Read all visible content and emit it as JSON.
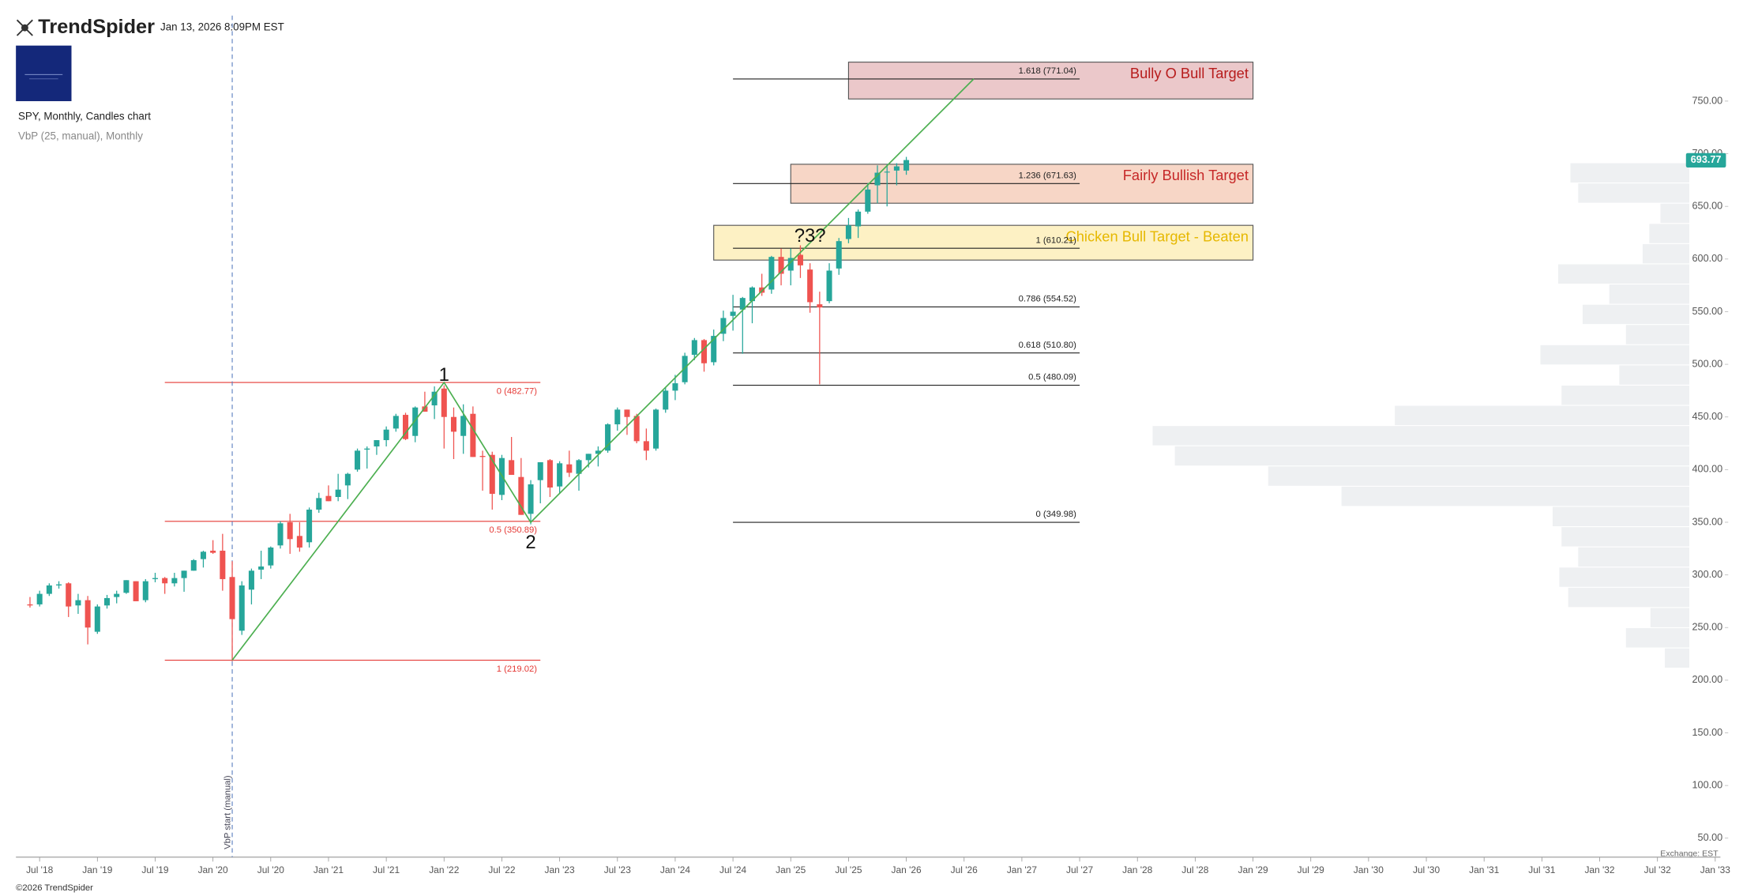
{
  "header": {
    "brand": "TrendSpider",
    "timestamp": "Jan 13, 2026 8:09PM EST",
    "footer": "©2026 TrendSpider"
  },
  "chart_data": {
    "type": "candlestick",
    "title": "SPY, Monthly, Candles chart",
    "subtitle": "VbP (25, manual), Monthly",
    "exchange": "Exchange: EST",
    "up_color": "#26a69a",
    "down_color": "#ef5350",
    "last_price": 693.77,
    "xlim": [
      "2018-05",
      "2033-02"
    ],
    "ylim": [
      32,
      846
    ],
    "yticks": [
      {
        "value": 50,
        "label": "50.00"
      },
      {
        "value": 100,
        "label": "100.00"
      },
      {
        "value": 150,
        "label": "150.00"
      },
      {
        "value": 200,
        "label": "200.00"
      },
      {
        "value": 250,
        "label": "250.00"
      },
      {
        "value": 300,
        "label": "300.00"
      },
      {
        "value": 350,
        "label": "350.00"
      },
      {
        "value": 400,
        "label": "400.00"
      },
      {
        "value": 450,
        "label": "450.00"
      },
      {
        "value": 500,
        "label": "500.00"
      },
      {
        "value": 550,
        "label": "550.00"
      },
      {
        "value": 600,
        "label": "600.00"
      },
      {
        "value": 650,
        "label": "650.00"
      },
      {
        "value": 700,
        "label": "700.00"
      },
      {
        "value": 750,
        "label": "750.00"
      }
    ],
    "xticks": [
      {
        "value": "2018-07",
        "label": "Jul '18"
      },
      {
        "value": "2019-01",
        "label": "Jan '19"
      },
      {
        "value": "2019-07",
        "label": "Jul '19"
      },
      {
        "value": "2020-01",
        "label": "Jan '20"
      },
      {
        "value": "2020-07",
        "label": "Jul '20"
      },
      {
        "value": "2021-01",
        "label": "Jan '21"
      },
      {
        "value": "2021-07",
        "label": "Jul '21"
      },
      {
        "value": "2022-01",
        "label": "Jan '22"
      },
      {
        "value": "2022-07",
        "label": "Jul '22"
      },
      {
        "value": "2023-01",
        "label": "Jan '23"
      },
      {
        "value": "2023-07",
        "label": "Jul '23"
      },
      {
        "value": "2024-01",
        "label": "Jan '24"
      },
      {
        "value": "2024-07",
        "label": "Jul '24"
      },
      {
        "value": "2025-01",
        "label": "Jan '25"
      },
      {
        "value": "2025-07",
        "label": "Jul '25"
      },
      {
        "value": "2026-01",
        "label": "Jan '26"
      },
      {
        "value": "2026-07",
        "label": "Jul '26"
      },
      {
        "value": "2027-01",
        "label": "Jan '27"
      },
      {
        "value": "2027-07",
        "label": "Jul '27"
      },
      {
        "value": "2028-01",
        "label": "Jan '28"
      },
      {
        "value": "2028-07",
        "label": "Jul '28"
      },
      {
        "value": "2029-01",
        "label": "Jan '29"
      },
      {
        "value": "2029-07",
        "label": "Jul '29"
      },
      {
        "value": "2030-01",
        "label": "Jan '30"
      },
      {
        "value": "2030-07",
        "label": "Jul '30"
      },
      {
        "value": "2031-01",
        "label": "Jan '31"
      },
      {
        "value": "2031-07",
        "label": "Jul '31"
      },
      {
        "value": "2032-01",
        "label": "Jan '32"
      },
      {
        "value": "2032-07",
        "label": "Jul '32"
      },
      {
        "value": "2033-01",
        "label": "Jan '33"
      }
    ],
    "candles": [
      {
        "x": "2018-06",
        "open": 272,
        "high": 279,
        "low": 269,
        "close": 271
      },
      {
        "x": "2018-07",
        "open": 272,
        "high": 285,
        "low": 270,
        "close": 282
      },
      {
        "x": "2018-08",
        "open": 282,
        "high": 292,
        "low": 280,
        "close": 290
      },
      {
        "x": "2018-09",
        "open": 290,
        "high": 294,
        "low": 287,
        "close": 291
      },
      {
        "x": "2018-10",
        "open": 292,
        "high": 293,
        "low": 260,
        "close": 270
      },
      {
        "x": "2018-11",
        "open": 271,
        "high": 282,
        "low": 263,
        "close": 276
      },
      {
        "x": "2018-12",
        "open": 276,
        "high": 280,
        "low": 234,
        "close": 250
      },
      {
        "x": "2019-01",
        "open": 246,
        "high": 272,
        "low": 244,
        "close": 270
      },
      {
        "x": "2019-02",
        "open": 271,
        "high": 281,
        "low": 268,
        "close": 278
      },
      {
        "x": "2019-03",
        "open": 279,
        "high": 285,
        "low": 273,
        "close": 282
      },
      {
        "x": "2019-04",
        "open": 283,
        "high": 295,
        "low": 282,
        "close": 295
      },
      {
        "x": "2019-05",
        "open": 294,
        "high": 294,
        "low": 275,
        "close": 275
      },
      {
        "x": "2019-06",
        "open": 276,
        "high": 296,
        "low": 274,
        "close": 294
      },
      {
        "x": "2019-07",
        "open": 296,
        "high": 302,
        "low": 293,
        "close": 297
      },
      {
        "x": "2019-08",
        "open": 297,
        "high": 298,
        "low": 282,
        "close": 292
      },
      {
        "x": "2019-09",
        "open": 292,
        "high": 302,
        "low": 289,
        "close": 297
      },
      {
        "x": "2019-10",
        "open": 297,
        "high": 304,
        "low": 284,
        "close": 304
      },
      {
        "x": "2019-11",
        "open": 304,
        "high": 315,
        "low": 304,
        "close": 314
      },
      {
        "x": "2019-12",
        "open": 315,
        "high": 323,
        "low": 307,
        "close": 322
      },
      {
        "x": "2020-01",
        "open": 323,
        "high": 333,
        "low": 320,
        "close": 321
      },
      {
        "x": "2020-02",
        "open": 323,
        "high": 339,
        "low": 285,
        "close": 296
      },
      {
        "x": "2020-03",
        "open": 298,
        "high": 313,
        "low": 218,
        "close": 258
      },
      {
        "x": "2020-04",
        "open": 247,
        "high": 294,
        "low": 243,
        "close": 290
      },
      {
        "x": "2020-05",
        "open": 286,
        "high": 306,
        "low": 272,
        "close": 304
      },
      {
        "x": "2020-06",
        "open": 305,
        "high": 323,
        "low": 296,
        "close": 308
      },
      {
        "x": "2020-07",
        "open": 309,
        "high": 327,
        "low": 306,
        "close": 326
      },
      {
        "x": "2020-08",
        "open": 328,
        "high": 351,
        "low": 325,
        "close": 349
      },
      {
        "x": "2020-09",
        "open": 350,
        "high": 358,
        "low": 320,
        "close": 334
      },
      {
        "x": "2020-10",
        "open": 337,
        "high": 350,
        "low": 322,
        "close": 326
      },
      {
        "x": "2020-11",
        "open": 331,
        "high": 364,
        "low": 326,
        "close": 362
      },
      {
        "x": "2020-12",
        "open": 362,
        "high": 378,
        "low": 359,
        "close": 373
      },
      {
        "x": "2021-01",
        "open": 375,
        "high": 385,
        "low": 370,
        "close": 370
      },
      {
        "x": "2021-02",
        "open": 374,
        "high": 396,
        "low": 370,
        "close": 381
      },
      {
        "x": "2021-03",
        "open": 385,
        "high": 397,
        "low": 372,
        "close": 396
      },
      {
        "x": "2021-04",
        "open": 400,
        "high": 420,
        "low": 398,
        "close": 418
      },
      {
        "x": "2021-05",
        "open": 419,
        "high": 422,
        "low": 401,
        "close": 420
      },
      {
        "x": "2021-06",
        "open": 422,
        "high": 428,
        "low": 414,
        "close": 428
      },
      {
        "x": "2021-07",
        "open": 428,
        "high": 441,
        "low": 422,
        "close": 438
      },
      {
        "x": "2021-08",
        "open": 439,
        "high": 453,
        "low": 436,
        "close": 451
      },
      {
        "x": "2021-09",
        "open": 452,
        "high": 454,
        "low": 428,
        "close": 429
      },
      {
        "x": "2021-10",
        "open": 432,
        "high": 460,
        "low": 426,
        "close": 459
      },
      {
        "x": "2021-11",
        "open": 460,
        "high": 474,
        "low": 455,
        "close": 455
      },
      {
        "x": "2021-12",
        "open": 461,
        "high": 479,
        "low": 448,
        "close": 474
      },
      {
        "x": "2022-01",
        "open": 477,
        "high": 480,
        "low": 420,
        "close": 450
      },
      {
        "x": "2022-02",
        "open": 450,
        "high": 459,
        "low": 410,
        "close": 436
      },
      {
        "x": "2022-03",
        "open": 432,
        "high": 462,
        "low": 415,
        "close": 451
      },
      {
        "x": "2022-04",
        "open": 453,
        "high": 460,
        "low": 412,
        "close": 412
      },
      {
        "x": "2022-05",
        "open": 413,
        "high": 418,
        "low": 380,
        "close": 412
      },
      {
        "x": "2022-06",
        "open": 414,
        "high": 417,
        "low": 362,
        "close": 377
      },
      {
        "x": "2022-07",
        "open": 376,
        "high": 414,
        "low": 371,
        "close": 411
      },
      {
        "x": "2022-08",
        "open": 409,
        "high": 431,
        "low": 395,
        "close": 395
      },
      {
        "x": "2022-09",
        "open": 393,
        "high": 411,
        "low": 357,
        "close": 357
      },
      {
        "x": "2022-10",
        "open": 358,
        "high": 390,
        "low": 348,
        "close": 386
      },
      {
        "x": "2022-11",
        "open": 390,
        "high": 407,
        "low": 368,
        "close": 407
      },
      {
        "x": "2022-12",
        "open": 409,
        "high": 410,
        "low": 374,
        "close": 383
      },
      {
        "x": "2023-01",
        "open": 384,
        "high": 408,
        "low": 377,
        "close": 406
      },
      {
        "x": "2023-02",
        "open": 405,
        "high": 418,
        "low": 393,
        "close": 397
      },
      {
        "x": "2023-03",
        "open": 396,
        "high": 410,
        "low": 380,
        "close": 409
      },
      {
        "x": "2023-04",
        "open": 409,
        "high": 415,
        "low": 402,
        "close": 415
      },
      {
        "x": "2023-05",
        "open": 415,
        "high": 422,
        "low": 403,
        "close": 418
      },
      {
        "x": "2023-06",
        "open": 418,
        "high": 444,
        "low": 416,
        "close": 443
      },
      {
        "x": "2023-07",
        "open": 443,
        "high": 459,
        "low": 437,
        "close": 457
      },
      {
        "x": "2023-08",
        "open": 457,
        "high": 457,
        "low": 433,
        "close": 450
      },
      {
        "x": "2023-09",
        "open": 451,
        "high": 453,
        "low": 425,
        "close": 427
      },
      {
        "x": "2023-10",
        "open": 427,
        "high": 439,
        "low": 409,
        "close": 418
      },
      {
        "x": "2023-11",
        "open": 420,
        "high": 458,
        "low": 418,
        "close": 457
      },
      {
        "x": "2023-12",
        "open": 457,
        "high": 478,
        "low": 454,
        "close": 475
      },
      {
        "x": "2024-01",
        "open": 475,
        "high": 490,
        "low": 466,
        "close": 482
      },
      {
        "x": "2024-02",
        "open": 483,
        "high": 511,
        "low": 481,
        "close": 508
      },
      {
        "x": "2024-03",
        "open": 509,
        "high": 525,
        "low": 504,
        "close": 523
      },
      {
        "x": "2024-04",
        "open": 523,
        "high": 524,
        "low": 493,
        "close": 501
      },
      {
        "x": "2024-05",
        "open": 502,
        "high": 533,
        "low": 499,
        "close": 527
      },
      {
        "x": "2024-06",
        "open": 529,
        "high": 551,
        "low": 522,
        "close": 544
      },
      {
        "x": "2024-07",
        "open": 546,
        "high": 566,
        "low": 532,
        "close": 550
      },
      {
        "x": "2024-08",
        "open": 552,
        "high": 564,
        "low": 510,
        "close": 563
      },
      {
        "x": "2024-09",
        "open": 560,
        "high": 574,
        "low": 539,
        "close": 573
      },
      {
        "x": "2024-10",
        "open": 573,
        "high": 586,
        "low": 565,
        "close": 568
      },
      {
        "x": "2024-11",
        "open": 571,
        "high": 603,
        "low": 567,
        "close": 602
      },
      {
        "x": "2024-12",
        "open": 602,
        "high": 610,
        "low": 575,
        "close": 586
      },
      {
        "x": "2025-01",
        "open": 589,
        "high": 610,
        "low": 575,
        "close": 601
      },
      {
        "x": "2025-02",
        "open": 604,
        "high": 613,
        "low": 582,
        "close": 594
      },
      {
        "x": "2025-03",
        "open": 590,
        "high": 596,
        "low": 549,
        "close": 559
      },
      {
        "x": "2025-04",
        "open": 557,
        "high": 569,
        "low": 481,
        "close": 554
      },
      {
        "x": "2025-05",
        "open": 560,
        "high": 596,
        "low": 558,
        "close": 589
      },
      {
        "x": "2025-06",
        "open": 591,
        "high": 620,
        "low": 585,
        "close": 617
      },
      {
        "x": "2025-07",
        "open": 619,
        "high": 639,
        "low": 615,
        "close": 632
      },
      {
        "x": "2025-08",
        "open": 631,
        "high": 647,
        "low": 620,
        "close": 645
      },
      {
        "x": "2025-09",
        "open": 645,
        "high": 672,
        "low": 643,
        "close": 666
      },
      {
        "x": "2025-10",
        "open": 670,
        "high": 689,
        "low": 653,
        "close": 682
      },
      {
        "x": "2025-11",
        "open": 683,
        "high": 690,
        "low": 650,
        "close": 683
      },
      {
        "x": "2025-12",
        "open": 684,
        "high": 691,
        "low": 670,
        "close": 688
      },
      {
        "x": "2026-01",
        "open": 684,
        "high": 697,
        "low": 680,
        "close": 694
      }
    ],
    "vbp_start": {
      "x": "2020-03",
      "label": "VbP start (manual)"
    },
    "volume_profile": {
      "color": "#eef0f2",
      "bins": [
        211,
        230.2,
        249.4,
        268.6,
        287.8,
        307,
        326.2,
        345.4,
        364.6,
        383.8,
        403,
        422.2,
        441.4,
        460.6,
        479.8,
        499,
        518.2,
        537.4,
        556.6,
        575.8,
        595,
        614.2,
        633.4,
        652.6,
        671.8,
        691
      ],
      "volumes": [
        22,
        57,
        35,
        109,
        117,
        100,
        115,
        123,
        313,
        379,
        463,
        483,
        265,
        115,
        63,
        134,
        57,
        96,
        72,
        118,
        42,
        36,
        26,
        100,
        107
      ]
    },
    "trend_line": {
      "color": "#4caf50",
      "x": [
        "2020-03",
        "2022-01",
        "2022-10",
        "2026-08"
      ],
      "y": [
        219.02,
        482.77,
        349.98,
        771.04
      ]
    },
    "wave_labels": [
      {
        "x": "2022-01",
        "y": 489,
        "label": "1"
      },
      {
        "x": "2022-10",
        "y": 330,
        "label": "2"
      },
      {
        "x": "2025-03",
        "y": 621,
        "label": "?3?"
      }
    ],
    "fib_sets": [
      {
        "color": "#e53935",
        "label_position": "below",
        "x_range": [
          "2019-08",
          "2022-11"
        ],
        "levels": [
          {
            "value": 482.77,
            "label": "0 (482.77)"
          },
          {
            "value": 350.89,
            "label": "0.5 (350.89)"
          },
          {
            "value": 219.02,
            "label": "1 (219.02)"
          }
        ]
      },
      {
        "color": "#222222",
        "label_position": "above",
        "x_range": [
          "2024-07",
          "2027-07"
        ],
        "levels": [
          {
            "value": 771.04,
            "label": "1.618 (771.04)"
          },
          {
            "value": 671.63,
            "label": "1.236 (671.63)"
          },
          {
            "value": 610.21,
            "label": "1 (610.21)"
          },
          {
            "value": 554.52,
            "label": "0.786 (554.52)"
          },
          {
            "value": 510.8,
            "label": "0.618 (510.80)"
          },
          {
            "value": 480.09,
            "label": "0.5 (480.09)"
          },
          {
            "value": 349.98,
            "label": "0 (349.98)"
          }
        ]
      }
    ],
    "zones": [
      {
        "label": "Bully O Bull Target",
        "x_range": [
          "2025-07",
          "2029-01"
        ],
        "range": [
          752,
          787
        ],
        "fill": "#ebc8ca",
        "text_color": "#b71c1c"
      },
      {
        "label": "Fairly Bullish Target",
        "x_range": [
          "2025-01",
          "2029-01"
        ],
        "range": [
          653,
          690
        ],
        "fill": "#f7d6c6",
        "text_color": "#c62828"
      },
      {
        "label": "Chicken Bull Target - Beaten",
        "x_range": [
          "2024-05",
          "2029-01"
        ],
        "range": [
          599,
          632
        ],
        "fill": "#fdf1c4",
        "text_color": "#e6b800"
      }
    ]
  }
}
